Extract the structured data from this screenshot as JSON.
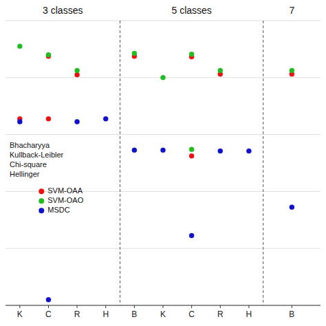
{
  "chart_data": [
    {
      "type": "dot",
      "title": "3 classes",
      "categories": [
        "K",
        "C",
        "R",
        "H"
      ],
      "series": [
        {
          "name": "SVM-OAA",
          "color": "#ee1111",
          "x": [
            "C",
            "R",
            "K",
            "C"
          ],
          "values": [
            0.875,
            0.81,
            0.655,
            0.655
          ],
          "errors": [
            0.004,
            0.004,
            0.004,
            0.004
          ]
        },
        {
          "name": "SVM-OAO",
          "color": "#22bb22",
          "x": [
            "K",
            "C",
            "R"
          ],
          "values": [
            0.91,
            0.88,
            0.825
          ],
          "errors": [
            0.004,
            0.004,
            0.004
          ]
        },
        {
          "name": "MSDC",
          "color": "#1111cc",
          "x": [
            "K",
            "R",
            "H",
            "C"
          ],
          "values": [
            0.645,
            0.645,
            0.655,
            0.02
          ],
          "errors": [
            0.004,
            0.004,
            0.004,
            0.004
          ]
        }
      ],
      "annotations": [
        "Bhacharyya",
        "Kullback-Leibler",
        "Chi-square",
        "Hellinger"
      ],
      "ylim": [
        0.0,
        1.0
      ],
      "yticks": [
        0.0,
        0.2,
        0.4,
        0.6,
        0.8,
        1.0
      ],
      "grid": true,
      "tick_labels": "x",
      "legend": "center"
    },
    {
      "type": "dot",
      "title": "5 classes",
      "categories": [
        "B",
        "K",
        "C",
        "R",
        "H"
      ],
      "series": [
        {
          "color": "#ee1111",
          "x": [
            "B",
            "C",
            "R",
            "C"
          ],
          "values": [
            0.875,
            0.873,
            0.812,
            0.525
          ],
          "errors": [
            0.004,
            0.004,
            0.004,
            0.004
          ]
        },
        {
          "color": "#22bb22",
          "x": [
            "B",
            "K",
            "C",
            "R",
            "C"
          ],
          "values": [
            0.885,
            0.8,
            0.882,
            0.825,
            0.548
          ],
          "errors": [
            0.004,
            0.004,
            0.004,
            0.004,
            0.004
          ]
        },
        {
          "color": "#1111cc",
          "x": [
            "B",
            "K",
            "R",
            "H",
            "C"
          ],
          "values": [
            0.545,
            0.545,
            0.542,
            0.542,
            0.245
          ],
          "errors": [
            0.004,
            0.004,
            0.004,
            0.004,
            0.004
          ]
        }
      ],
      "ylim": [
        0.0,
        1.0
      ],
      "yticks": [
        0.0,
        0.2,
        0.4,
        0.6,
        0.8,
        1.0
      ],
      "grid": true,
      "tick_labels": "x"
    },
    {
      "type": "dot",
      "title": "7",
      "categories": [
        "B"
      ],
      "series": [
        {
          "color": "#ee1111",
          "x": [
            "B"
          ],
          "values": [
            0.812
          ],
          "errors": [
            0.004
          ]
        },
        {
          "color": "#22bb22",
          "x": [
            "B"
          ],
          "values": [
            0.825
          ],
          "errors": [
            0.004
          ]
        },
        {
          "color": "#1111cc",
          "x": [
            "B"
          ],
          "values": [
            0.345
          ],
          "errors": [
            0.004
          ]
        }
      ],
      "ylim": [
        0.0,
        1.0
      ],
      "yticks": [
        0.0,
        0.2,
        0.4,
        0.6,
        0.8,
        1.0
      ],
      "grid": true,
      "tick_labels": "x"
    }
  ]
}
